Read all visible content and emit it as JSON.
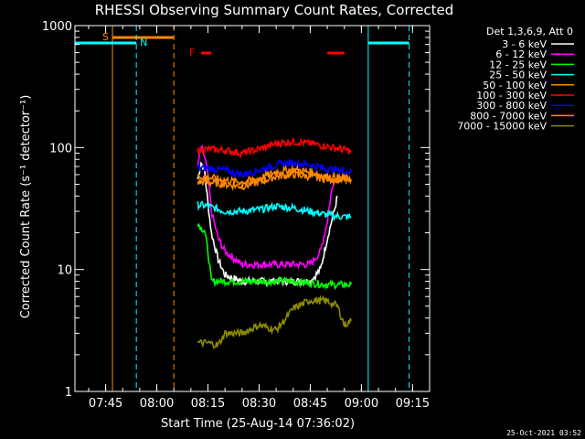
{
  "chart_data": {
    "type": "line",
    "title": "RHESSI Observing Summary Count Rates, Corrected",
    "xlabel": "Start Time (25-Aug-14 07:36:02)",
    "ylabel": "Corrected Count Rate (s⁻¹ detector⁻¹)",
    "yscale": "log",
    "ylim": [
      1,
      1000
    ],
    "xlim": [
      "07:36",
      "09:20"
    ],
    "x_ticks": [
      "07:45",
      "08:00",
      "08:15",
      "08:30",
      "08:45",
      "09:00",
      "09:15"
    ],
    "y_ticks": [
      "1",
      "10",
      "100",
      "1000"
    ],
    "legend_header": "Det 1,3,6,9, Att 0",
    "legend_position": "right",
    "series": [
      {
        "name": "3 - 6 keV",
        "color": "#ffffff",
        "x": [
          "08:12",
          "08:13",
          "08:14",
          "08:15",
          "08:16",
          "08:18",
          "08:20",
          "08:25",
          "08:30",
          "08:35",
          "08:40",
          "08:45",
          "08:48",
          "08:50",
          "08:52",
          "08:53"
        ],
        "values": [
          55,
          75,
          65,
          35,
          20,
          12,
          9,
          8,
          8,
          8,
          8,
          8,
          10,
          18,
          30,
          40
        ]
      },
      {
        "name": "6 - 12 keV",
        "color": "#ff00ff",
        "x": [
          "08:12",
          "08:13",
          "08:14",
          "08:15",
          "08:16",
          "08:18",
          "08:20",
          "08:25",
          "08:30",
          "08:35",
          "08:40",
          "08:45",
          "08:48",
          "08:50",
          "08:51",
          "08:52"
        ],
        "values": [
          70,
          100,
          85,
          60,
          30,
          18,
          14,
          11,
          11,
          11,
          11,
          11,
          14,
          25,
          40,
          55
        ]
      },
      {
        "name": "12 - 25 keV",
        "color": "#00ff00",
        "x": [
          "08:12",
          "08:13",
          "08:14",
          "08:15",
          "08:16",
          "08:20",
          "08:30",
          "08:40",
          "08:50",
          "08:57"
        ],
        "values": [
          24,
          22,
          21,
          14,
          8,
          8,
          8,
          8,
          7.5,
          7.5
        ]
      },
      {
        "name": "25 - 50 keV",
        "color": "#00ffff",
        "x": [
          "08:12",
          "08:15",
          "08:20",
          "08:25",
          "08:30",
          "08:35",
          "08:40",
          "08:45",
          "08:50",
          "08:55",
          "08:57"
        ],
        "values": [
          34,
          33,
          30,
          30,
          31,
          33,
          32,
          30,
          28,
          27,
          27
        ]
      },
      {
        "name": "50 - 100 keV",
        "color": "#ff8800",
        "x": [
          "08:12",
          "08:15",
          "08:20",
          "08:25",
          "08:30",
          "08:35",
          "08:40",
          "08:45",
          "08:50",
          "08:55",
          "08:57"
        ],
        "values": [
          52,
          52,
          50,
          48,
          52,
          58,
          60,
          58,
          55,
          54,
          53
        ]
      },
      {
        "name": "100 - 300 keV",
        "color": "#ff0000",
        "x": [
          "08:12",
          "08:15",
          "08:20",
          "08:25",
          "08:30",
          "08:35",
          "08:40",
          "08:45",
          "08:50",
          "08:55",
          "08:57"
        ],
        "values": [
          95,
          97,
          95,
          90,
          97,
          108,
          112,
          108,
          102,
          96,
          93
        ]
      },
      {
        "name": "300 - 800 keV",
        "color": "#0000ff",
        "x": [
          "08:12",
          "08:15",
          "08:20",
          "08:25",
          "08:30",
          "08:35",
          "08:40",
          "08:45",
          "08:50",
          "08:55",
          "08:57"
        ],
        "values": [
          68,
          68,
          65,
          60,
          65,
          72,
          75,
          72,
          67,
          64,
          63
        ]
      },
      {
        "name": "800 - 7000 keV",
        "color": "#ff8800",
        "x": [
          "08:12",
          "08:15",
          "08:20",
          "08:25",
          "08:30",
          "08:35",
          "08:40",
          "08:45",
          "08:50",
          "08:55",
          "08:57"
        ],
        "values": [
          58,
          57,
          54,
          52,
          56,
          63,
          66,
          63,
          58,
          56,
          55
        ]
      },
      {
        "name": "7000 - 15000 keV",
        "color": "#8b8b00",
        "x": [
          "08:12",
          "08:15",
          "08:18",
          "08:20",
          "08:25",
          "08:30",
          "08:35",
          "08:38",
          "08:40",
          "08:45",
          "08:50",
          "08:53",
          "08:55",
          "08:57"
        ],
        "values": [
          2.5,
          2.5,
          2.4,
          3.0,
          3.0,
          3.5,
          3.2,
          4.0,
          4.8,
          5.6,
          5.5,
          5.0,
          3.5,
          3.8
        ]
      }
    ],
    "annotations": [
      {
        "label": "S",
        "color": "#ff8800",
        "type": "saa-bar",
        "x_start": "07:36",
        "x_end": "08:05"
      },
      {
        "label": "N",
        "color": "#00ffff",
        "type": "night-bar",
        "x_start": "07:36",
        "x_end": "07:54"
      },
      {
        "label": "F",
        "color": "#ff0000",
        "type": "flare-bar",
        "segments": [
          [
            "08:13",
            "08:16"
          ],
          [
            "08:50",
            "08:55"
          ]
        ]
      }
    ],
    "timestamp": "25-Oct-2021 03:52",
    "grid": false
  },
  "colors": {
    "background": "#000000",
    "axis": "#ffffff"
  }
}
